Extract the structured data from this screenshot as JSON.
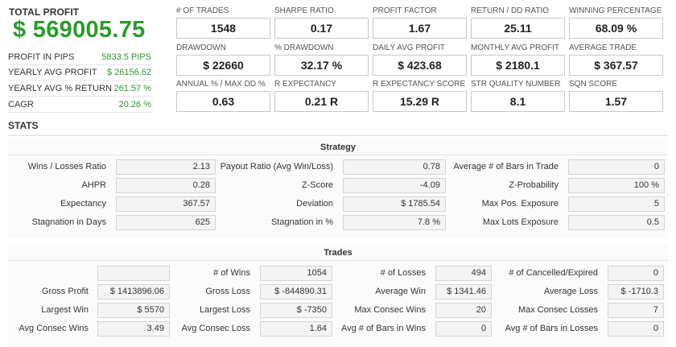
{
  "summary": {
    "total_label": "TOTAL PROFIT",
    "total_value": "$ 569005.75",
    "rows": [
      {
        "label": "PROFIT IN PIPS",
        "value": "5833.5 PIPS"
      },
      {
        "label": "YEARLY AVG PROFIT",
        "value": "$ 26156.62"
      },
      {
        "label": "YEARLY AVG % RETURN",
        "value": "261.57 %"
      },
      {
        "label": "CAGR",
        "value": "20.26 %"
      }
    ]
  },
  "cards": [
    {
      "label": "# OF TRADES",
      "value": "1548"
    },
    {
      "label": "SHARPE RATIO",
      "value": "0.17"
    },
    {
      "label": "PROFIT FACTOR",
      "value": "1.67"
    },
    {
      "label": "RETURN / DD RATIO",
      "value": "25.11"
    },
    {
      "label": "WINNING PERCENTAGE",
      "value": "68.09 %"
    },
    {
      "label": "DRAWDOWN",
      "value": "$ 22660"
    },
    {
      "label": "% DRAWDOWN",
      "value": "32.17 %"
    },
    {
      "label": "DAILY AVG PROFIT",
      "value": "$ 423.68"
    },
    {
      "label": "MONTHLY AVG PROFIT",
      "value": "$ 2180.1"
    },
    {
      "label": "AVERAGE TRADE",
      "value": "$ 367.57"
    },
    {
      "label": "ANNUAL % / MAX DD %",
      "value": "0.63"
    },
    {
      "label": "R EXPECTANCY",
      "value": "0.21 R"
    },
    {
      "label": "R EXPECTANCY SCORE",
      "value": "15.29 R"
    },
    {
      "label": "STR QUALITY NUMBER",
      "value": "8.1"
    },
    {
      "label": "SQN SCORE",
      "value": "1.57"
    }
  ],
  "stats_title": "STATS",
  "strategy": {
    "title": "Strategy",
    "rows": [
      [
        {
          "label": "Wins / Losses Ratio",
          "value": "2.13"
        },
        {
          "label": "Payout Ratio (Avg Win/Loss)",
          "value": "0.78"
        },
        {
          "label": "Average # of Bars in Trade",
          "value": "0"
        }
      ],
      [
        {
          "label": "AHPR",
          "value": "0.28"
        },
        {
          "label": "Z-Score",
          "value": "-4.09"
        },
        {
          "label": "Z-Probability",
          "value": "100 %"
        }
      ],
      [
        {
          "label": "Expectancy",
          "value": "367.57"
        },
        {
          "label": "Deviation",
          "value": "$ 1785.54"
        },
        {
          "label": "Max Pos. Exposure",
          "value": "5"
        }
      ],
      [
        {
          "label": "Stagnation in Days",
          "value": "625"
        },
        {
          "label": "Stagnation in %",
          "value": "7.8 %"
        },
        {
          "label": "Max Lots Exposure",
          "value": "0.5"
        }
      ]
    ]
  },
  "trades": {
    "title": "Trades",
    "rows": [
      [
        {
          "label": "",
          "value": ""
        },
        {
          "label": "# of Wins",
          "value": "1054"
        },
        {
          "label": "# of Losses",
          "value": "494"
        },
        {
          "label": "# of Cancelled/Expired",
          "value": "0"
        }
      ],
      [
        {
          "label": "Gross Profit",
          "value": "$ 1413896.06"
        },
        {
          "label": "Gross Loss",
          "value": "$ -844890.31"
        },
        {
          "label": "Average Win",
          "value": "$ 1341.46"
        },
        {
          "label": "Average Loss",
          "value": "$ -1710.3"
        }
      ],
      [
        {
          "label": "Largest Win",
          "value": "$ 5570"
        },
        {
          "label": "Largest Loss",
          "value": "$ -7350"
        },
        {
          "label": "Max Consec Wins",
          "value": "20"
        },
        {
          "label": "Max Consec Losses",
          "value": "7"
        }
      ],
      [
        {
          "label": "Avg Consec Wins",
          "value": "3.49"
        },
        {
          "label": "Avg Consec Loss",
          "value": "1.64"
        },
        {
          "label": "Avg # of Bars in Wins",
          "value": "0"
        },
        {
          "label": "Avg # of Bars in Losses",
          "value": "0"
        }
      ]
    ]
  }
}
